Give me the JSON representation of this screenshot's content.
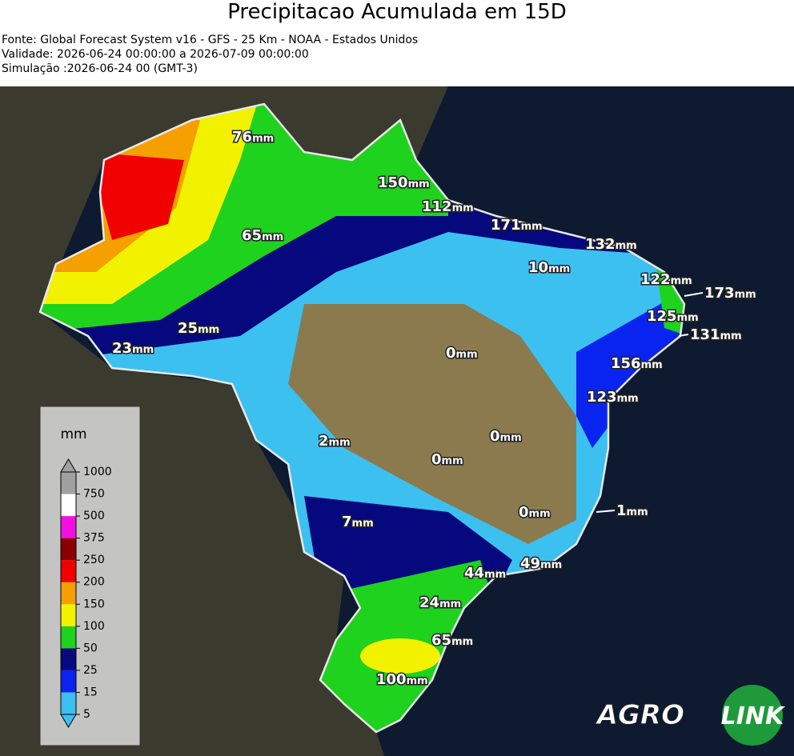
{
  "header": {
    "title": "Precipitacao Acumulada em 15D",
    "lines": [
      "Fonte: Global Forecast System v16 - GFS - 25 Km - NOAA - Estados Unidos",
      "Validade: 2026-06-24 00:00:00 a 2026-07-09 00:00:00",
      "Simulação :2026-06-24 00 (GMT-3)"
    ]
  },
  "map": {
    "unit": "mm",
    "labels": [
      {
        "value": 76
      },
      {
        "value": 150
      },
      {
        "value": 112
      },
      {
        "value": 171
      },
      {
        "value": 132
      },
      {
        "value": 65
      },
      {
        "value": 10
      },
      {
        "value": 122
      },
      {
        "value": 173
      },
      {
        "value": 125
      },
      {
        "value": 131
      },
      {
        "value": 25
      },
      {
        "value": 23
      },
      {
        "value": 0
      },
      {
        "value": 156
      },
      {
        "value": 123
      },
      {
        "value": 2
      },
      {
        "value": 0
      },
      {
        "value": 0
      },
      {
        "value": 0
      },
      {
        "value": 1
      },
      {
        "value": 7
      },
      {
        "value": 49
      },
      {
        "value": 44
      },
      {
        "value": 24
      },
      {
        "value": 65
      },
      {
        "value": 100
      }
    ]
  },
  "legend": {
    "title": "mm",
    "ticks": [
      5,
      15,
      25,
      50,
      100,
      150,
      200,
      250,
      375,
      500,
      750,
      1000
    ],
    "colors": [
      "#3cc0f0",
      "#0a24f0",
      "#06087e",
      "#1ed21e",
      "#f2f200",
      "#f5a000",
      "#f00000",
      "#8a0000",
      "#f010e0",
      "#ffffff",
      "#a0a0a0"
    ]
  },
  "logo": {
    "left": "AGRO",
    "right": "LINK"
  }
}
